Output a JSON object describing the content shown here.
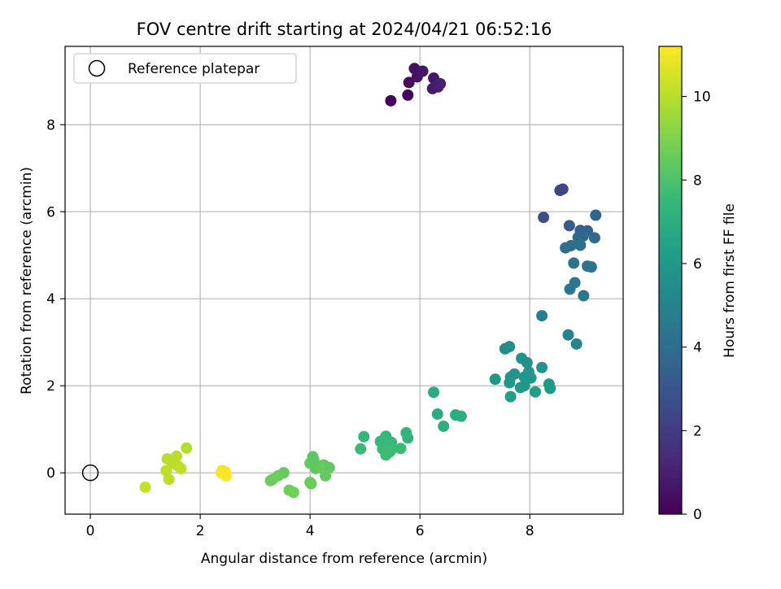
{
  "chart_data": {
    "type": "scatter",
    "title": "FOV centre drift starting at 2024/04/21 06:52:16",
    "xlabel": "Angular distance from reference (arcmin)",
    "ylabel": "Rotation from reference (arcmin)",
    "xlim": [
      -0.46,
      9.7
    ],
    "ylim": [
      -0.95,
      9.8
    ],
    "xticks": [
      0,
      2,
      4,
      6,
      8
    ],
    "yticks": [
      0,
      2,
      4,
      6,
      8
    ],
    "grid": true,
    "legend": {
      "placement": "upper-left",
      "entries": [
        {
          "label": "Reference platepar",
          "marker": "open-circle"
        }
      ]
    },
    "reference_point": {
      "x": 0.0,
      "y": 0.0
    },
    "colorbar": {
      "label": "Hours from first FF file",
      "colormap": "viridis",
      "range": [
        0,
        11.2
      ],
      "ticks": [
        0,
        2,
        4,
        6,
        8,
        10
      ]
    },
    "colormap_stops": [
      "#440154",
      "#482878",
      "#3e4989",
      "#31688e",
      "#26828e",
      "#1f9e89",
      "#35b779",
      "#6ece58",
      "#b5de2b",
      "#fde725"
    ],
    "points": [
      {
        "x": 5.47,
        "y": 8.55,
        "c": 0.1
      },
      {
        "x": 5.78,
        "y": 8.68,
        "c": 0.2
      },
      {
        "x": 5.8,
        "y": 8.97,
        "c": 0.3
      },
      {
        "x": 5.9,
        "y": 9.29,
        "c": 0.4
      },
      {
        "x": 5.95,
        "y": 9.1,
        "c": 0.5
      },
      {
        "x": 6.05,
        "y": 9.23,
        "c": 0.6
      },
      {
        "x": 6.25,
        "y": 9.07,
        "c": 0.7
      },
      {
        "x": 6.23,
        "y": 8.83,
        "c": 0.8
      },
      {
        "x": 6.33,
        "y": 8.87,
        "c": 0.9
      },
      {
        "x": 6.37,
        "y": 8.94,
        "c": 1.0
      },
      {
        "x": 8.55,
        "y": 6.49,
        "c": 2.3
      },
      {
        "x": 8.6,
        "y": 6.52,
        "c": 2.4
      },
      {
        "x": 8.25,
        "y": 5.87,
        "c": 2.7
      },
      {
        "x": 8.72,
        "y": 5.68,
        "c": 3.2
      },
      {
        "x": 8.92,
        "y": 5.57,
        "c": 3.4
      },
      {
        "x": 9.05,
        "y": 5.56,
        "c": 3.5
      },
      {
        "x": 9.2,
        "y": 5.92,
        "c": 3.6
      },
      {
        "x": 8.88,
        "y": 5.41,
        "c": 3.7
      },
      {
        "x": 8.97,
        "y": 5.44,
        "c": 3.8
      },
      {
        "x": 9.18,
        "y": 5.4,
        "c": 3.9
      },
      {
        "x": 8.75,
        "y": 5.22,
        "c": 4.0
      },
      {
        "x": 8.65,
        "y": 5.17,
        "c": 4.0
      },
      {
        "x": 8.92,
        "y": 5.23,
        "c": 4.1
      },
      {
        "x": 8.8,
        "y": 4.82,
        "c": 4.2
      },
      {
        "x": 9.05,
        "y": 4.75,
        "c": 4.3
      },
      {
        "x": 9.12,
        "y": 4.73,
        "c": 4.3
      },
      {
        "x": 8.82,
        "y": 4.37,
        "c": 4.4
      },
      {
        "x": 8.73,
        "y": 4.22,
        "c": 4.4
      },
      {
        "x": 8.98,
        "y": 4.07,
        "c": 4.5
      },
      {
        "x": 8.22,
        "y": 3.61,
        "c": 4.8
      },
      {
        "x": 8.7,
        "y": 3.17,
        "c": 5.0
      },
      {
        "x": 8.85,
        "y": 2.96,
        "c": 5.1
      },
      {
        "x": 7.55,
        "y": 2.85,
        "c": 5.4
      },
      {
        "x": 7.63,
        "y": 2.9,
        "c": 5.5
      },
      {
        "x": 7.85,
        "y": 2.63,
        "c": 5.6
      },
      {
        "x": 7.95,
        "y": 2.53,
        "c": 5.6
      },
      {
        "x": 8.22,
        "y": 2.42,
        "c": 5.7
      },
      {
        "x": 7.65,
        "y": 2.2,
        "c": 5.8
      },
      {
        "x": 7.72,
        "y": 2.27,
        "c": 5.8
      },
      {
        "x": 7.98,
        "y": 2.32,
        "c": 5.8
      },
      {
        "x": 7.37,
        "y": 2.15,
        "c": 5.9
      },
      {
        "x": 7.63,
        "y": 2.07,
        "c": 5.9
      },
      {
        "x": 7.9,
        "y": 2.2,
        "c": 5.9
      },
      {
        "x": 8.02,
        "y": 2.18,
        "c": 6.0
      },
      {
        "x": 7.83,
        "y": 1.96,
        "c": 6.0
      },
      {
        "x": 7.9,
        "y": 2.0,
        "c": 6.0
      },
      {
        "x": 8.35,
        "y": 2.04,
        "c": 6.1
      },
      {
        "x": 8.37,
        "y": 1.94,
        "c": 6.1
      },
      {
        "x": 7.65,
        "y": 1.75,
        "c": 6.2
      },
      {
        "x": 8.1,
        "y": 1.86,
        "c": 6.2
      },
      {
        "x": 6.25,
        "y": 1.85,
        "c": 6.8
      },
      {
        "x": 6.32,
        "y": 1.35,
        "c": 6.9
      },
      {
        "x": 6.65,
        "y": 1.33,
        "c": 6.9
      },
      {
        "x": 6.75,
        "y": 1.3,
        "c": 7.0
      },
      {
        "x": 6.43,
        "y": 1.07,
        "c": 7.0
      },
      {
        "x": 5.75,
        "y": 0.92,
        "c": 7.3
      },
      {
        "x": 5.78,
        "y": 0.8,
        "c": 7.3
      },
      {
        "x": 4.98,
        "y": 0.83,
        "c": 7.4
      },
      {
        "x": 5.38,
        "y": 0.84,
        "c": 7.4
      },
      {
        "x": 5.28,
        "y": 0.72,
        "c": 7.5
      },
      {
        "x": 5.48,
        "y": 0.7,
        "c": 7.5
      },
      {
        "x": 5.35,
        "y": 0.65,
        "c": 7.5
      },
      {
        "x": 5.42,
        "y": 0.6,
        "c": 7.5
      },
      {
        "x": 5.32,
        "y": 0.55,
        "c": 7.6
      },
      {
        "x": 5.5,
        "y": 0.55,
        "c": 7.6
      },
      {
        "x": 5.65,
        "y": 0.56,
        "c": 7.6
      },
      {
        "x": 4.92,
        "y": 0.55,
        "c": 7.6
      },
      {
        "x": 5.45,
        "y": 0.48,
        "c": 7.7
      },
      {
        "x": 5.38,
        "y": 0.41,
        "c": 7.7
      },
      {
        "x": 4.05,
        "y": 0.37,
        "c": 8.3
      },
      {
        "x": 4.07,
        "y": 0.28,
        "c": 8.3
      },
      {
        "x": 4.0,
        "y": 0.22,
        "c": 8.4
      },
      {
        "x": 4.25,
        "y": 0.18,
        "c": 8.4
      },
      {
        "x": 4.35,
        "y": 0.12,
        "c": 8.4
      },
      {
        "x": 4.1,
        "y": 0.1,
        "c": 8.4
      },
      {
        "x": 4.18,
        "y": 0.12,
        "c": 8.5
      },
      {
        "x": 4.28,
        "y": -0.07,
        "c": 8.5
      },
      {
        "x": 3.52,
        "y": 0.0,
        "c": 8.5
      },
      {
        "x": 3.42,
        "y": -0.07,
        "c": 8.6
      },
      {
        "x": 3.32,
        "y": -0.15,
        "c": 8.6
      },
      {
        "x": 3.28,
        "y": -0.18,
        "c": 8.6
      },
      {
        "x": 4.0,
        "y": -0.22,
        "c": 8.6
      },
      {
        "x": 4.02,
        "y": -0.25,
        "c": 8.6
      },
      {
        "x": 3.62,
        "y": -0.4,
        "c": 8.7
      },
      {
        "x": 3.7,
        "y": -0.45,
        "c": 8.7
      },
      {
        "x": 1.75,
        "y": 0.57,
        "c": 9.9
      },
      {
        "x": 1.4,
        "y": 0.32,
        "c": 10.0
      },
      {
        "x": 1.57,
        "y": 0.38,
        "c": 10.0
      },
      {
        "x": 1.5,
        "y": 0.22,
        "c": 10.0
      },
      {
        "x": 1.6,
        "y": 0.15,
        "c": 10.0
      },
      {
        "x": 1.65,
        "y": 0.1,
        "c": 10.1
      },
      {
        "x": 1.38,
        "y": 0.05,
        "c": 10.1
      },
      {
        "x": 1.43,
        "y": -0.15,
        "c": 10.1
      },
      {
        "x": 1.0,
        "y": -0.33,
        "c": 10.2
      },
      {
        "x": 2.4,
        "y": 0.05,
        "c": 11.0
      },
      {
        "x": 2.45,
        "y": 0.03,
        "c": 11.1
      },
      {
        "x": 2.38,
        "y": 0.0,
        "c": 11.1
      },
      {
        "x": 2.47,
        "y": -0.07,
        "c": 11.2
      }
    ]
  }
}
